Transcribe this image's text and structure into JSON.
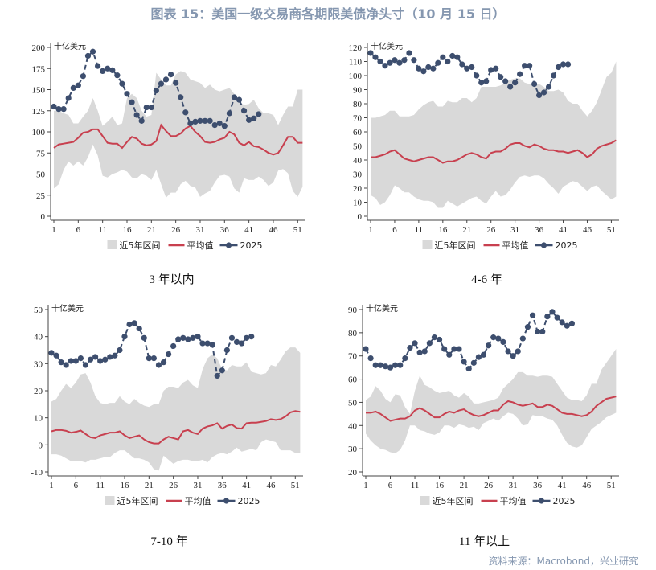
{
  "title": "图表 15：美国一级交易商各期限美债净头寸（10 月 15 日）",
  "source": "资料来源：Macrobond，兴业研究",
  "colors": {
    "band": "#d9d9d9",
    "average": "#c8404f",
    "y2025": "#3d4e6e",
    "title": "#8597b0"
  },
  "legend": [
    "近5年区间",
    "平均值",
    "2025"
  ],
  "chart_data": [
    {
      "type": "line",
      "subtitle": "3 年以内",
      "unit": "十亿美元",
      "ylim": [
        0,
        200
      ],
      "yticks": [
        0,
        25,
        50,
        75,
        100,
        125,
        150,
        175,
        200
      ],
      "xticks": [
        1,
        6,
        11,
        16,
        21,
        26,
        31,
        36,
        41,
        46,
        51
      ],
      "grid": false,
      "legend": "bottom",
      "band_upper": [
        125,
        125,
        122,
        120,
        110,
        110,
        118,
        125,
        140,
        125,
        107,
        112,
        118,
        108,
        110,
        140,
        145,
        140,
        125,
        118,
        120,
        170,
        162,
        155,
        155,
        168,
        172,
        170,
        162,
        160,
        158,
        152,
        156,
        150,
        148,
        150,
        152,
        145,
        135,
        132,
        133,
        138,
        128,
        122,
        122,
        120,
        108,
        120,
        130,
        130,
        150,
        150
      ],
      "band_lower": [
        33,
        38,
        55,
        65,
        60,
        65,
        60,
        70,
        85,
        72,
        48,
        46,
        50,
        52,
        55,
        53,
        46,
        45,
        50,
        48,
        43,
        55,
        38,
        22,
        28,
        28,
        38,
        42,
        36,
        34,
        23,
        27,
        30,
        40,
        48,
        49,
        47,
        33,
        28,
        45,
        43,
        43,
        47,
        43,
        36,
        40,
        54,
        56,
        51,
        30,
        23,
        35
      ],
      "average": [
        81,
        85,
        86,
        87,
        88,
        93,
        99,
        100,
        103,
        103,
        95,
        87,
        86,
        86,
        81,
        88,
        94,
        92,
        86,
        84,
        85,
        89,
        108,
        101,
        95,
        95,
        98,
        104,
        107,
        100,
        95,
        88,
        87,
        88,
        91,
        93,
        100,
        97,
        87,
        84,
        88,
        83,
        82,
        79,
        75,
        73,
        75,
        84,
        94,
        94,
        87,
        87
      ],
      "y2025": [
        130,
        127,
        127,
        140,
        152,
        155,
        166,
        190,
        195,
        178,
        172,
        175,
        173,
        167,
        157,
        145,
        135,
        120,
        113,
        129,
        129,
        149,
        157,
        162,
        168,
        158,
        141,
        123,
        110,
        112,
        113,
        113,
        113,
        108,
        110,
        107,
        122,
        141,
        138,
        125,
        114,
        116,
        121
      ]
    },
    {
      "type": "line",
      "subtitle": "4-6 年",
      "unit": "十亿美元",
      "ylim": [
        0,
        120
      ],
      "yticks": [
        0,
        10,
        20,
        30,
        40,
        50,
        60,
        70,
        80,
        90,
        100,
        110,
        120
      ],
      "xticks": [
        1,
        6,
        11,
        16,
        21,
        26,
        31,
        36,
        41,
        46,
        51
      ],
      "grid": false,
      "legend": "bottom",
      "band_upper": [
        70,
        70,
        71,
        72,
        75,
        75,
        71,
        71,
        71,
        72,
        76,
        79,
        81,
        82,
        78,
        78,
        82,
        81,
        81,
        84,
        84,
        81,
        84,
        92,
        92,
        92,
        92,
        93,
        95,
        97,
        98,
        98,
        95,
        94,
        94,
        94,
        92,
        89,
        89,
        90,
        88,
        82,
        80,
        80,
        75,
        71,
        75,
        81,
        90,
        99,
        102,
        110
      ],
      "band_lower": [
        15,
        13,
        8,
        10,
        15,
        22,
        20,
        17,
        17,
        14,
        12,
        11,
        11,
        10,
        6,
        6,
        11,
        9,
        7,
        9,
        11,
        13,
        14,
        11,
        9,
        14,
        18,
        14,
        15,
        19,
        24,
        28,
        29,
        28,
        29,
        29,
        27,
        23,
        20,
        16,
        21,
        23,
        25,
        24,
        21,
        18,
        21,
        22,
        18,
        15,
        12,
        14
      ],
      "average": [
        42,
        42,
        43,
        44,
        46,
        47,
        44,
        41,
        40,
        39,
        40,
        41,
        42,
        42,
        40,
        38,
        39,
        39,
        40,
        42,
        44,
        45,
        44,
        42,
        41,
        45,
        46,
        46,
        48,
        51,
        52,
        52,
        50,
        49,
        51,
        50,
        48,
        47,
        47,
        46,
        46,
        45,
        46,
        47,
        45,
        42,
        44,
        48,
        50,
        51,
        52,
        54
      ],
      "y2025": [
        116,
        113,
        110,
        107,
        109,
        111,
        109,
        111,
        116,
        111,
        105,
        103,
        106,
        105,
        109,
        113,
        110,
        114,
        113,
        108,
        105,
        106,
        100,
        95,
        96,
        104,
        105,
        99,
        96,
        92,
        95,
        101,
        107,
        107,
        94,
        86,
        88,
        92,
        100,
        106,
        108,
        108
      ]
    },
    {
      "type": "line",
      "subtitle": "7-10 年",
      "unit": "十亿美元",
      "ylim": [
        -10,
        50
      ],
      "yticks": [
        -10,
        0,
        10,
        20,
        30,
        40,
        50
      ],
      "xticks": [
        1,
        6,
        11,
        16,
        21,
        26,
        31,
        36,
        41,
        46,
        51
      ],
      "grid": false,
      "legend": "bottom",
      "band_upper": [
        16,
        17,
        20,
        22.5,
        21,
        23,
        26,
        26.5,
        23,
        18,
        15.5,
        15,
        15.5,
        15.5,
        18,
        16,
        15,
        17,
        15.5,
        14.5,
        14,
        15,
        15,
        20,
        21.5,
        21.5,
        21,
        23,
        24,
        22,
        21,
        28,
        32,
        33.5,
        32,
        28,
        27.5,
        29.5,
        29,
        29,
        30.5,
        27,
        26.5,
        26,
        26.5,
        29.5,
        29,
        31.5,
        34.5,
        36,
        36,
        34
      ],
      "band_lower": [
        -3.5,
        -3.5,
        -4,
        -5,
        -6,
        -6,
        -6,
        -6.5,
        -5.5,
        -5.5,
        -5,
        -4.5,
        -4.5,
        -3,
        -2,
        -2,
        -3.5,
        -5,
        -5,
        -5.5,
        -6.5,
        -9,
        -9.5,
        -4,
        -5.5,
        -7,
        -6,
        -5.5,
        -5.5,
        -6,
        -6,
        -5.5,
        -6.5,
        -4.5,
        -3.5,
        -3,
        -3.5,
        -2.5,
        -1,
        -2.5,
        -2,
        -1.5,
        -2,
        1,
        2,
        1.5,
        1,
        -2,
        -2,
        -2,
        -3,
        -3
      ],
      "average": [
        5,
        5.5,
        5.5,
        5.2,
        4.5,
        4.8,
        5.3,
        4,
        2.8,
        2.5,
        3.5,
        4,
        4.5,
        4.5,
        5,
        3.5,
        2.5,
        3,
        3.5,
        2,
        1,
        0.5,
        0.5,
        2,
        3,
        2.5,
        2,
        5,
        5.5,
        4.5,
        4,
        6,
        6.8,
        7.2,
        8,
        6,
        7,
        7.5,
        6.2,
        6,
        8,
        8.2,
        8.2,
        8.5,
        8.8,
        9.5,
        9.2,
        9.5,
        10.5,
        12,
        12.5,
        12.2
      ],
      "y2025": [
        34,
        33,
        30.5,
        29.5,
        31,
        31,
        32,
        29.5,
        31.5,
        32.5,
        31,
        31.5,
        32.5,
        33,
        35,
        40,
        44.5,
        45,
        43,
        39.5,
        32,
        32,
        29.5,
        30.5,
        33.5,
        36.5,
        39,
        39.5,
        39,
        39.5,
        40,
        37.5,
        37.5,
        37,
        25.5,
        27.5,
        35,
        39.5,
        38,
        37.5,
        39.5,
        40
      ]
    },
    {
      "type": "line",
      "subtitle": "11 年以上",
      "unit": "十亿美元",
      "ylim": [
        20,
        90
      ],
      "yticks": [
        20,
        30,
        40,
        50,
        60,
        70,
        80,
        90
      ],
      "xticks": [
        1,
        6,
        11,
        16,
        21,
        26,
        31,
        36,
        41,
        46,
        51
      ],
      "grid": false,
      "legend": "bottom",
      "band_upper": [
        51,
        52.5,
        57,
        55,
        51.5,
        50,
        53.5,
        53,
        48,
        45,
        55,
        61.5,
        57.5,
        56.5,
        55,
        54,
        54.5,
        55,
        53,
        52,
        54,
        52.5,
        49.5,
        49.5,
        50,
        50.5,
        51,
        52,
        56,
        58,
        60,
        63,
        63,
        61.5,
        61.5,
        61,
        61.5,
        61.5,
        61,
        58,
        55,
        52,
        51,
        51,
        50.5,
        53,
        58,
        58,
        64,
        67,
        70,
        73
      ],
      "band_lower": [
        36.5,
        33.5,
        31.5,
        30,
        29.5,
        28.5,
        28,
        29.5,
        33.5,
        40,
        40,
        38,
        37.5,
        36.5,
        36,
        37,
        40,
        40,
        39,
        40.5,
        40,
        39,
        39.5,
        38,
        41,
        42,
        43,
        42,
        44,
        45.5,
        45,
        43,
        40,
        40.5,
        44.5,
        44,
        44,
        43,
        42.5,
        40,
        36,
        32.5,
        31,
        30.5,
        31.5,
        35,
        38.5,
        40,
        41.5,
        43.5,
        44.5,
        45.5
      ],
      "average": [
        45.5,
        45.5,
        46,
        45,
        43.5,
        42,
        42.5,
        43,
        43,
        44,
        46.5,
        47.5,
        46.5,
        45,
        43.5,
        43.5,
        45,
        46,
        45.5,
        46.5,
        47,
        45.5,
        44.5,
        44,
        44.5,
        45.5,
        46.5,
        46.5,
        49,
        50.5,
        50,
        49,
        48.5,
        49,
        49.5,
        48,
        48,
        49,
        48.5,
        47,
        45.5,
        45,
        45,
        44.5,
        44,
        44.5,
        46,
        48.5,
        50,
        51.5,
        52,
        52.5
      ],
      "y2025": [
        73,
        69,
        66,
        66,
        65.5,
        65,
        66,
        66,
        69,
        73.5,
        75.5,
        71.5,
        72,
        75.5,
        78,
        77,
        73,
        70.5,
        73,
        73,
        67.5,
        64.5,
        67,
        69.5,
        70.5,
        74.5,
        78,
        77.5,
        76,
        72,
        70,
        72,
        77.5,
        82.5,
        87.5,
        80.5,
        80.5,
        87,
        89,
        86.5,
        84.5,
        83,
        84
      ]
    }
  ]
}
